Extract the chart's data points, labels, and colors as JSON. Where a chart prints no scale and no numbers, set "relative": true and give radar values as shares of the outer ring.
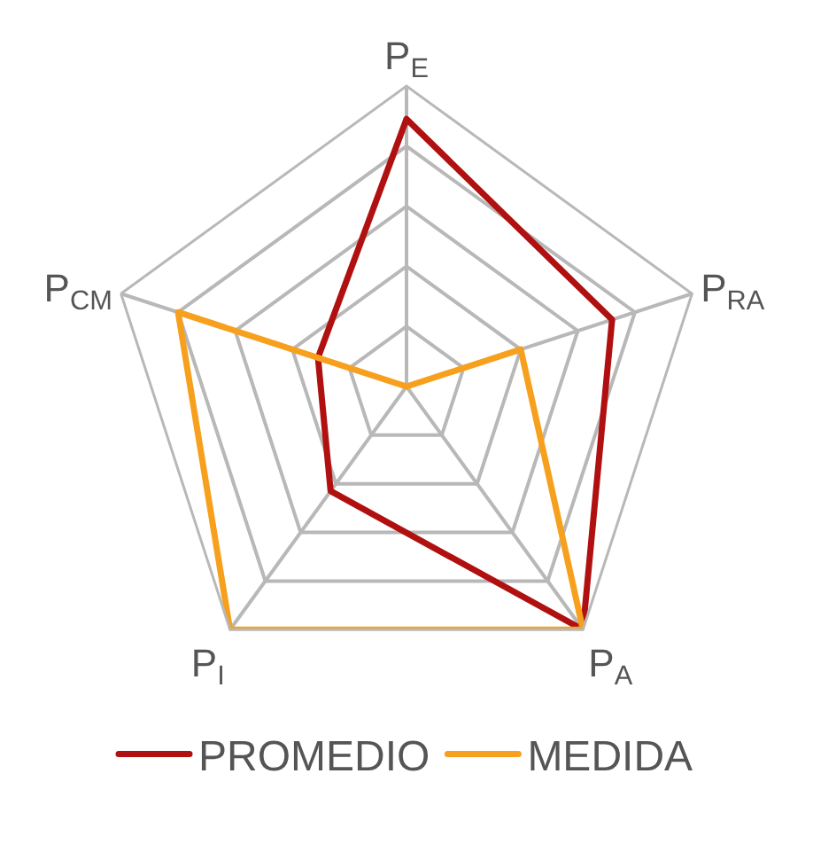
{
  "chart_data": {
    "type": "radar",
    "relative": true,
    "categories": [
      "P$_{E}$",
      "P$_{RA}$",
      "P$_{A}$",
      "P$_{I}$",
      "P$_{CM}$"
    ],
    "series": [
      {
        "name": "PROMEDIO",
        "color": "#b01010",
        "values": [
          0.89,
          0.72,
          1.0,
          0.43,
          0.31
        ]
      },
      {
        "name": "MEDIDA",
        "color": "#f7a01d",
        "values": [
          0.0,
          0.4,
          1.0,
          1.0,
          0.8
        ]
      }
    ],
    "grid": true,
    "legend": "bottom",
    "marker": "none",
    "line_style": "solid"
  }
}
